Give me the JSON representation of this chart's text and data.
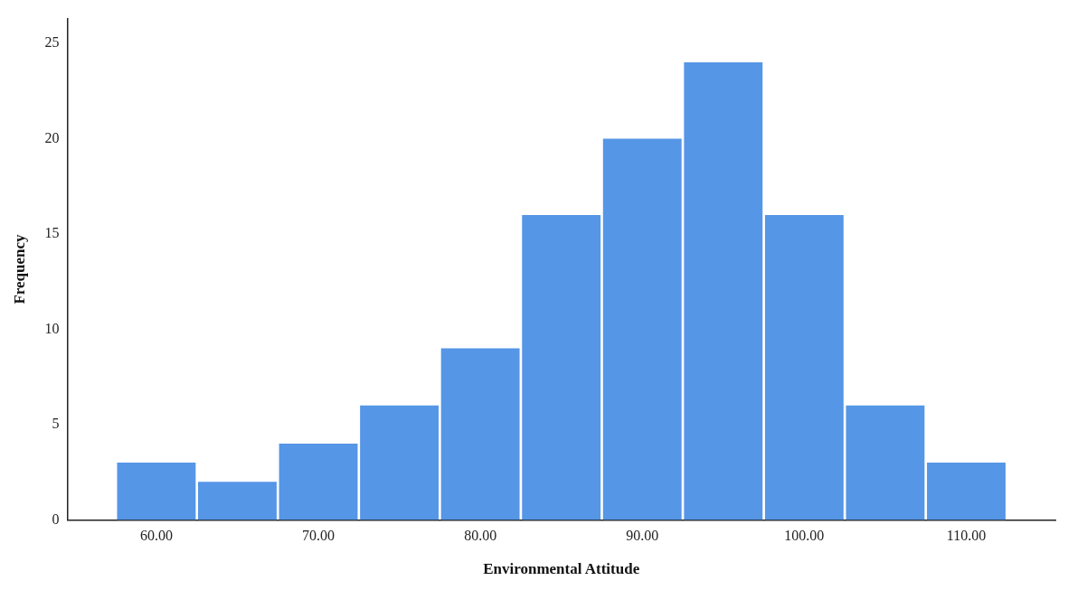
{
  "chart_data": {
    "type": "histogram",
    "xlabel": "Environmental Attitude",
    "ylabel": "Frequency",
    "bins": [
      57.5,
      62.5,
      67.5,
      72.5,
      77.5,
      82.5,
      87.5,
      92.5,
      97.5,
      102.5,
      107.5,
      112.5
    ],
    "values": [
      3,
      2,
      4,
      6,
      9,
      16,
      20,
      24,
      16,
      6,
      3
    ],
    "color": "#5596e6",
    "xlim": [
      54.5,
      115.5
    ],
    "xticks": [
      {
        "value": 60,
        "label": "60.00"
      },
      {
        "value": 70,
        "label": "70.00"
      },
      {
        "value": 80,
        "label": "80.00"
      },
      {
        "value": 90,
        "label": "90.00"
      },
      {
        "value": 100,
        "label": "100.00"
      },
      {
        "value": 110,
        "label": "110.00"
      }
    ],
    "ylim": [
      0,
      26.3
    ],
    "yticks": [
      0,
      5,
      10,
      15,
      20,
      25
    ],
    "grid": false,
    "legend": false
  }
}
